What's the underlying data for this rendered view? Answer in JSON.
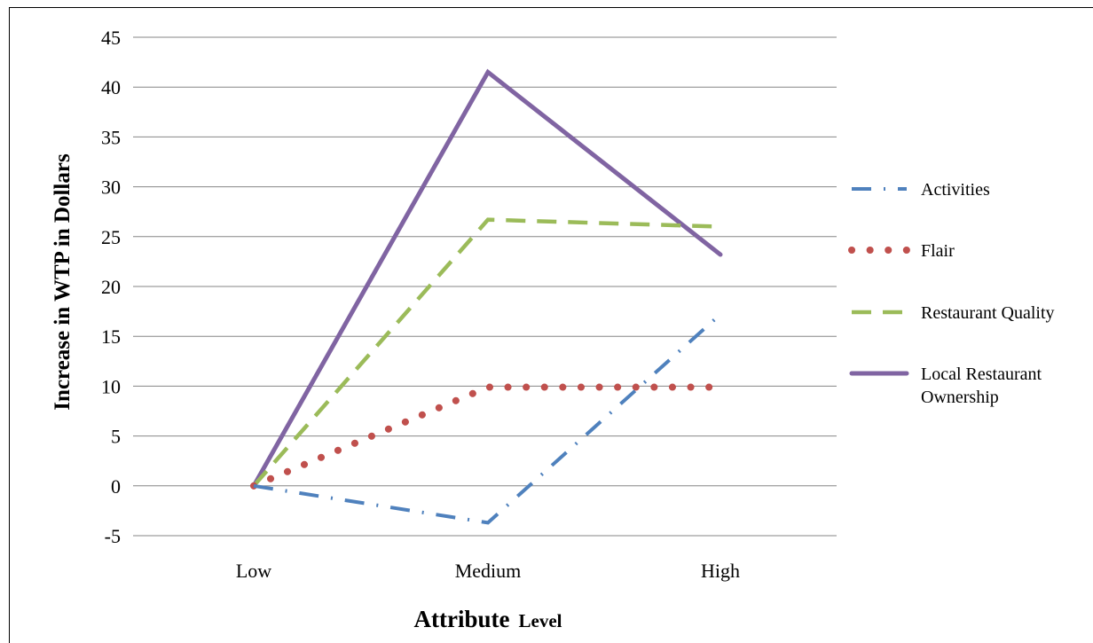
{
  "chart_data": {
    "type": "line",
    "categories": [
      "Low",
      "Medium",
      "High"
    ],
    "ylabel": "Increase in WTP in Dollars",
    "xlabel": {
      "main": "Attribute",
      "suffix": "Level"
    },
    "ylim": [
      -5,
      45
    ],
    "yticks": [
      -5,
      0,
      5,
      10,
      15,
      20,
      25,
      30,
      35,
      40,
      45
    ],
    "grid": true,
    "legend_position": "right",
    "series": [
      {
        "name": "Activities",
        "legend_lines": [
          "Activities"
        ],
        "values": [
          0,
          -3.7,
          17.2
        ],
        "color": "#4F81BD",
        "style": "dash-dot"
      },
      {
        "name": "Flair",
        "legend_lines": [
          "Flair"
        ],
        "values": [
          0,
          9.9,
          9.9
        ],
        "color": "#C0504D",
        "style": "round-dot"
      },
      {
        "name": "Restaurant Quality",
        "legend_lines": [
          "Restaurant Quality"
        ],
        "values": [
          0,
          26.7,
          26.0
        ],
        "color": "#9BBB59",
        "style": "dash"
      },
      {
        "name": "Local Restaurant Ownership",
        "legend_lines": [
          "Local Restaurant",
          "Ownership"
        ],
        "values": [
          0,
          41.5,
          23.2
        ],
        "color": "#8064A2",
        "style": "solid"
      }
    ]
  }
}
